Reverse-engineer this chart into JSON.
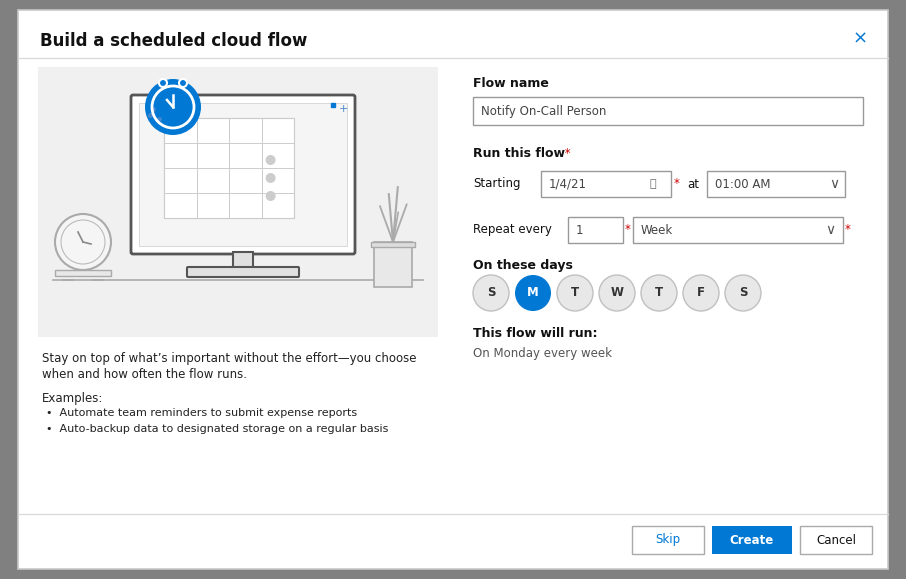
{
  "title": "Build a scheduled cloud flow",
  "close_x": "×",
  "dialog_bg": "#ffffff",
  "outer_border_color": "#c8c8c8",
  "outer_bg": "#808080",
  "left_panel_bg": "#f0f0f0",
  "flow_name_label": "Flow name",
  "flow_name_value": "Notify On-Call Person",
  "run_flow_label": "Run this flow",
  "starting_label": "Starting",
  "starting_date": "1/4/21",
  "at_label": "at",
  "starting_time": "01:00 AM",
  "repeat_label": "Repeat every",
  "repeat_num": "1",
  "repeat_unit": "Week",
  "on_these_days_label": "On these days",
  "days": [
    "S",
    "M",
    "T",
    "W",
    "T",
    "F",
    "S"
  ],
  "active_day_index": 1,
  "active_day_color": "#0078d4",
  "inactive_day_color": "#e8e8e8",
  "inactive_day_border": "#c0c0c0",
  "active_day_text_color": "#ffffff",
  "inactive_day_text_color": "#333333",
  "this_flow_run_label": "This flow will run:",
  "this_flow_run_value": "On Monday every week",
  "desc_text1": "Stay on top of what’s important without the effort—you choose",
  "desc_text2": "when and how often the flow runs.",
  "examples_label": "Examples:",
  "bullet1": "Automate team reminders to submit expense reports",
  "bullet2": "Auto-backup data to designated storage on a regular basis",
  "btn_skip": "Skip",
  "btn_create": "Create",
  "btn_cancel": "Cancel",
  "btn_create_color": "#0078d4",
  "btn_create_text_color": "#ffffff",
  "btn_other_color": "#ffffff",
  "btn_other_text_color": "#111111",
  "btn_border_color": "#aaaaaa",
  "required_star_color": "#cc0000",
  "input_border_color": "#999999",
  "input_bg": "#ffffff",
  "label_color": "#111111",
  "illus_gray": "#aaaaaa",
  "illus_light": "#d8d8d8",
  "illus_bg": "#f0f0f0",
  "title_fontsize": 12,
  "body_fontsize": 8.5,
  "small_fontsize": 8.0
}
